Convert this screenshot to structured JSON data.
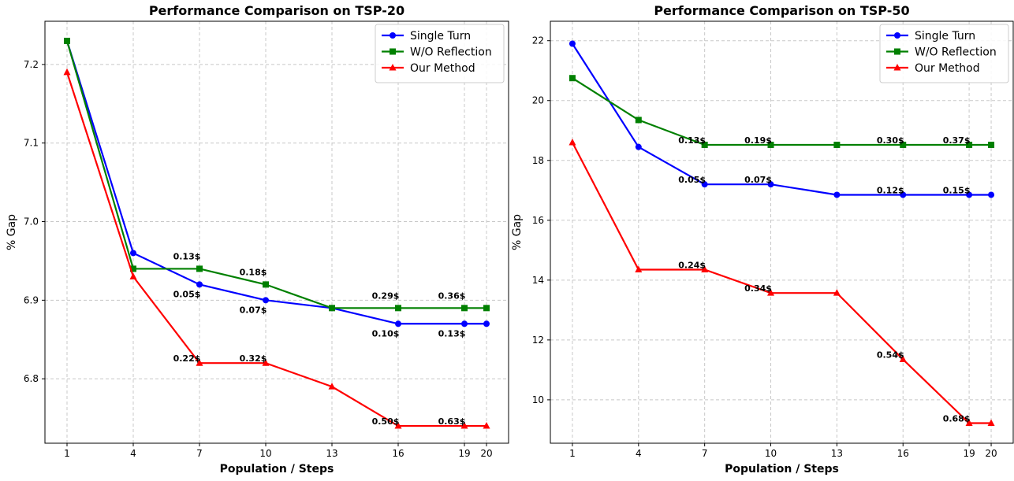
{
  "chart_data": [
    {
      "type": "line",
      "title": "Performance Comparison on TSP-20",
      "xlabel": "Population / Steps",
      "ylabel": "% Gap",
      "x": [
        1,
        4,
        7,
        10,
        13,
        16,
        19,
        20
      ],
      "x_ticks": [
        1,
        4,
        7,
        10,
        13,
        16,
        19,
        20
      ],
      "xlim": [
        0,
        21
      ],
      "ylim": [
        6.718,
        7.255
      ],
      "y_ticks": [
        6.8,
        6.9,
        7.0,
        7.1,
        7.2
      ],
      "y_tick_labels": [
        "6.8",
        "6.9",
        "7.0",
        "7.1",
        "7.2"
      ],
      "grid": true,
      "legend_position": "top-right",
      "series": [
        {
          "name": "Single Turn",
          "color": "#0000ff",
          "marker": "circle",
          "values": [
            7.23,
            6.96,
            6.92,
            6.9,
            6.89,
            6.87,
            6.87,
            6.87
          ]
        },
        {
          "name": "W/O Reflection",
          "color": "#008000",
          "marker": "square",
          "values": [
            7.23,
            6.94,
            6.94,
            6.92,
            6.89,
            6.89,
            6.89,
            6.89
          ]
        },
        {
          "name": "Our Method",
          "color": "#ff0000",
          "marker": "triangle",
          "values": [
            7.19,
            6.93,
            6.82,
            6.82,
            6.79,
            6.74,
            6.74,
            6.74
          ]
        }
      ],
      "annotations": [
        {
          "text": "0.13$",
          "x": 7,
          "y": 6.94,
          "series": "W/O Reflection",
          "pos": "above"
        },
        {
          "text": "0.05$",
          "x": 7,
          "y": 6.92,
          "series": "Single Turn",
          "pos": "below"
        },
        {
          "text": "0.18$",
          "x": 10,
          "y": 6.92,
          "series": "W/O Reflection",
          "pos": "above"
        },
        {
          "text": "0.07$",
          "x": 10,
          "y": 6.9,
          "series": "Single Turn",
          "pos": "below"
        },
        {
          "text": "0.29$",
          "x": 16,
          "y": 6.89,
          "series": "W/O Reflection",
          "pos": "above"
        },
        {
          "text": "0.10$",
          "x": 16,
          "y": 6.87,
          "series": "Single Turn",
          "pos": "below"
        },
        {
          "text": "0.36$",
          "x": 19,
          "y": 6.89,
          "series": "W/O Reflection",
          "pos": "above"
        },
        {
          "text": "0.13$",
          "x": 19,
          "y": 6.87,
          "series": "Single Turn",
          "pos": "below"
        },
        {
          "text": "0.22$",
          "x": 7,
          "y": 6.82,
          "series": "Our Method",
          "pos": "left"
        },
        {
          "text": "0.32$",
          "x": 10,
          "y": 6.82,
          "series": "Our Method",
          "pos": "left"
        },
        {
          "text": "0.50$",
          "x": 16,
          "y": 6.74,
          "series": "Our Method",
          "pos": "left"
        },
        {
          "text": "0.63$",
          "x": 19,
          "y": 6.74,
          "series": "Our Method",
          "pos": "left"
        }
      ]
    },
    {
      "type": "line",
      "title": "Performance Comparison on TSP-50",
      "xlabel": "Population / Steps",
      "ylabel": "% Gap",
      "x": [
        1,
        4,
        7,
        10,
        13,
        16,
        19,
        20
      ],
      "x_ticks": [
        1,
        4,
        7,
        10,
        13,
        16,
        19,
        20
      ],
      "xlim": [
        0,
        21
      ],
      "ylim": [
        8.55,
        22.65
      ],
      "y_ticks": [
        10,
        12,
        14,
        16,
        18,
        20,
        22
      ],
      "y_tick_labels": [
        "10",
        "12",
        "14",
        "16",
        "18",
        "20",
        "22"
      ],
      "grid": true,
      "legend_position": "top-right",
      "series": [
        {
          "name": "Single Turn",
          "color": "#0000ff",
          "marker": "circle",
          "values": [
            21.9,
            18.45,
            17.2,
            17.2,
            16.85,
            16.85,
            16.85,
            16.85
          ]
        },
        {
          "name": "W/O Reflection",
          "color": "#008000",
          "marker": "square",
          "values": [
            20.75,
            19.35,
            18.52,
            18.52,
            18.52,
            18.52,
            18.52,
            18.52
          ]
        },
        {
          "name": "Our Method",
          "color": "#ff0000",
          "marker": "triangle",
          "values": [
            18.6,
            14.35,
            14.35,
            13.57,
            13.57,
            11.35,
            9.22,
            9.22
          ]
        }
      ],
      "annotations": [
        {
          "text": "0.13$",
          "x": 7,
          "y": 18.52,
          "series": "W/O Reflection",
          "pos": "left"
        },
        {
          "text": "0.19$",
          "x": 10,
          "y": 18.52,
          "series": "W/O Reflection",
          "pos": "left"
        },
        {
          "text": "0.30$",
          "x": 16,
          "y": 18.52,
          "series": "W/O Reflection",
          "pos": "left"
        },
        {
          "text": "0.37$",
          "x": 19,
          "y": 18.52,
          "series": "W/O Reflection",
          "pos": "left"
        },
        {
          "text": "0.05$",
          "x": 7,
          "y": 17.2,
          "series": "Single Turn",
          "pos": "left"
        },
        {
          "text": "0.07$",
          "x": 10,
          "y": 17.2,
          "series": "Single Turn",
          "pos": "left"
        },
        {
          "text": "0.12$",
          "x": 16,
          "y": 16.85,
          "series": "Single Turn",
          "pos": "left"
        },
        {
          "text": "0.15$",
          "x": 19,
          "y": 16.85,
          "series": "Single Turn",
          "pos": "left"
        },
        {
          "text": "0.24$",
          "x": 7,
          "y": 14.35,
          "series": "Our Method",
          "pos": "left"
        },
        {
          "text": "0.34$",
          "x": 10,
          "y": 13.57,
          "series": "Our Method",
          "pos": "left"
        },
        {
          "text": "0.54$",
          "x": 16,
          "y": 11.35,
          "series": "Our Method",
          "pos": "left"
        },
        {
          "text": "0.68$",
          "x": 19,
          "y": 9.22,
          "series": "Our Method",
          "pos": "left"
        }
      ]
    }
  ]
}
